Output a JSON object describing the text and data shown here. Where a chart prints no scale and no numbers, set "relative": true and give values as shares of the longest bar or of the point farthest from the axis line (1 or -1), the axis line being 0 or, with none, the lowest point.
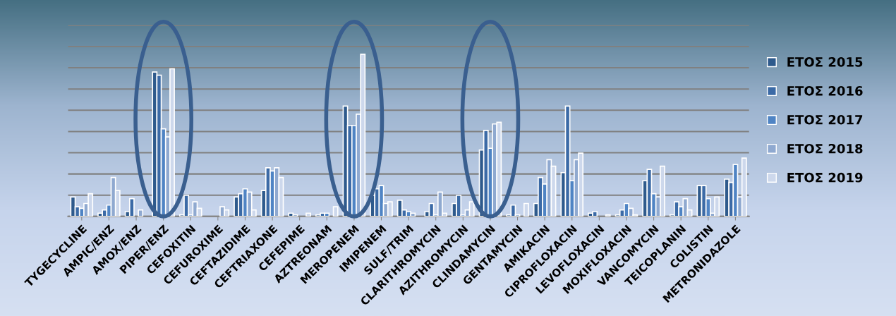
{
  "chart_data": {
    "type": "bar",
    "relative": true,
    "grid": "y",
    "legend": "right",
    "categories": [
      "TYGECYCLINE",
      "AMPIC/ENZ",
      "AMOX/ENZ",
      "PIPER/ENZ",
      "CEFOXITIN",
      "CEFUROXIME",
      "CEFTAZIDIME",
      "CEFTRIAXONE",
      "CEFEPIME",
      "AZTREONAM",
      "MEROPENEM",
      "IMIPENEM",
      "SULF/TRIM",
      "CLARITHROMYCIN",
      "AZITHROMYCIN",
      "CLINDAMYCIN",
      "GENTAMYCIN",
      "AMIKACIN",
      "CIPROFLOXACIN",
      "LEVOFLOXACIN",
      "MOXIFLOXACIN",
      "VANCOMYCIN",
      "TEICOPLANIN",
      "COLISTIN",
      "METRONIDAZOLE"
    ],
    "series": [
      {
        "name": "ΕΤΟΣ 2015",
        "color": "#2e5a8c",
        "values": [
          0.12,
          0.02,
          0.03,
          0.89,
          0.01,
          0,
          0.12,
          0.16,
          0.02,
          0.01,
          0.68,
          0.13,
          0.1,
          0.03,
          0.08,
          0.41,
          0.01,
          0.08,
          0.27,
          0.02,
          0.01,
          0.22,
          0.01,
          0.19,
          0.23
        ]
      },
      {
        "name": "ΕΤΟΣ 2016",
        "color": "#3b6aa6",
        "values": [
          0.06,
          0.04,
          0.11,
          0.87,
          0.13,
          0,
          0.14,
          0.3,
          0.01,
          0.02,
          0.56,
          0.17,
          0.04,
          0.08,
          0.13,
          0.53,
          0.07,
          0.24,
          0.68,
          0.03,
          0.04,
          0.29,
          0.09,
          0.19,
          0.21
        ]
      },
      {
        "name": "ΕΤΟΣ 2017",
        "color": "#4f84c4",
        "values": [
          0.05,
          0.07,
          0,
          0.54,
          0.01,
          0,
          0.17,
          0.28,
          0,
          0.02,
          0.56,
          0.19,
          0.03,
          0.01,
          0.01,
          0.42,
          0.01,
          0.2,
          0.22,
          0,
          0.08,
          0.14,
          0.06,
          0.11,
          0.32
        ]
      },
      {
        "name": "ΕΤΟΣ 2018",
        "color": "#8fa9d0",
        "values": [
          0.08,
          0.24,
          0.04,
          0.49,
          0.09,
          0.06,
          0.15,
          0.3,
          0,
          0,
          0.63,
          0.08,
          0.02,
          0.15,
          0.04,
          0.57,
          0,
          0.35,
          0.35,
          0,
          0.05,
          0.12,
          0.11,
          0.02,
          0.12
        ]
      },
      {
        "name": "ΕΤΟΣ 2019",
        "color": "#cdd8ec",
        "values": [
          0.14,
          0.16,
          0,
          0.91,
          0.05,
          0.04,
          0.04,
          0.24,
          0.02,
          0.06,
          1,
          0.09,
          0,
          0.02,
          0.09,
          0.58,
          0.08,
          0.31,
          0.39,
          0.01,
          0.01,
          0.31,
          0.04,
          0.12,
          0.36
        ]
      }
    ]
  }
}
